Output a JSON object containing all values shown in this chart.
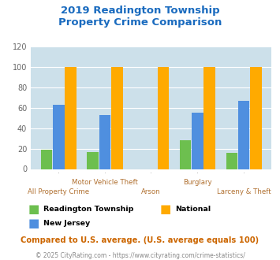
{
  "title": "2019 Readington Township\nProperty Crime Comparison",
  "title_color": "#1a6bbf",
  "categories": [
    "All Property Crime",
    "Motor Vehicle Theft",
    "Arson",
    "Burglary",
    "Larceny & Theft"
  ],
  "readington": [
    19,
    17,
    0,
    28,
    16
  ],
  "national": [
    100,
    100,
    100,
    100,
    100
  ],
  "new_jersey": [
    63,
    53,
    0,
    55,
    67
  ],
  "colors": {
    "readington": "#6dbf4f",
    "national": "#ffaa00",
    "new_jersey": "#4f8fdf"
  },
  "ylim": [
    0,
    120
  ],
  "yticks": [
    0,
    20,
    40,
    60,
    80,
    100,
    120
  ],
  "xlabel_color": "#b07030",
  "background_color": "#cce0ea",
  "legend_note": "Compared to U.S. average. (U.S. average equals 100)",
  "legend_note_color": "#cc6600",
  "copyright": "© 2025 CityRating.com - https://www.cityrating.com/crime-statistics/",
  "copyright_color": "#888888",
  "top_labels": [
    [
      "Motor Vehicle Theft",
      1
    ],
    [
      "Burglary",
      3
    ]
  ],
  "bot_labels": [
    [
      "All Property Crime",
      0
    ],
    [
      "Arson",
      2
    ],
    [
      "Larceny & Theft",
      4
    ]
  ]
}
